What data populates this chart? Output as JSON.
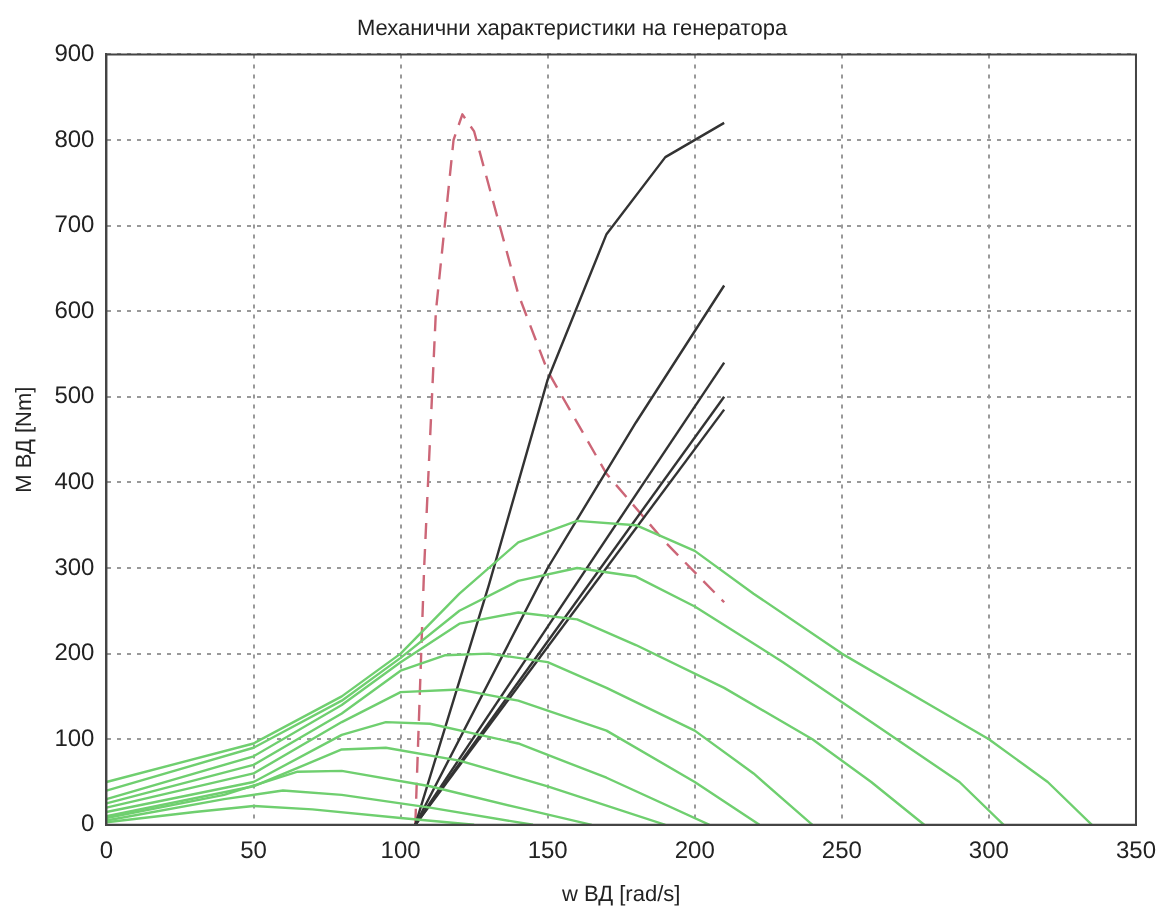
{
  "chart_data": {
    "type": "line",
    "title": "Механични характеристики на генератора",
    "xlabel": "w ВД [rad/s]",
    "ylabel": "M ВД [Nm]",
    "xlim": [
      0,
      350
    ],
    "ylim": [
      0,
      900
    ],
    "xticks": [
      0,
      50,
      100,
      150,
      200,
      250,
      300,
      350
    ],
    "yticks": [
      0,
      100,
      200,
      300,
      400,
      500,
      600,
      700,
      800,
      900
    ],
    "grid": true,
    "legend": false,
    "series": [
      {
        "color": "#6fcf6f",
        "x": [
          0,
          50,
          80,
          100,
          120,
          140,
          160,
          180,
          200,
          220,
          250,
          280,
          300,
          320,
          335
        ],
        "values": [
          50,
          95,
          150,
          200,
          270,
          330,
          355,
          350,
          320,
          270,
          200,
          140,
          100,
          50,
          0
        ]
      },
      {
        "color": "#6fcf6f",
        "x": [
          0,
          50,
          80,
          100,
          120,
          140,
          160,
          180,
          200,
          230,
          260,
          290,
          305
        ],
        "values": [
          40,
          90,
          145,
          195,
          250,
          285,
          300,
          290,
          255,
          190,
          120,
          50,
          0
        ]
      },
      {
        "color": "#6fcf6f",
        "x": [
          0,
          50,
          80,
          100,
          120,
          140,
          160,
          180,
          210,
          240,
          260,
          278
        ],
        "values": [
          30,
          80,
          140,
          190,
          235,
          248,
          240,
          210,
          160,
          100,
          50,
          0
        ]
      },
      {
        "color": "#6fcf6f",
        "x": [
          0,
          50,
          80,
          100,
          115,
          130,
          150,
          170,
          200,
          220,
          240
        ],
        "values": [
          25,
          70,
          130,
          180,
          198,
          200,
          190,
          160,
          110,
          60,
          0
        ]
      },
      {
        "color": "#6fcf6f",
        "x": [
          0,
          50,
          80,
          100,
          120,
          140,
          170,
          200,
          222
        ],
        "values": [
          20,
          60,
          120,
          155,
          158,
          145,
          110,
          50,
          0
        ]
      },
      {
        "color": "#6fcf6f",
        "x": [
          0,
          50,
          80,
          95,
          110,
          140,
          170,
          205
        ],
        "values": [
          15,
          50,
          105,
          120,
          118,
          95,
          55,
          0
        ]
      },
      {
        "color": "#6fcf6f",
        "x": [
          0,
          50,
          80,
          95,
          120,
          150,
          190
        ],
        "values": [
          10,
          45,
          88,
          90,
          75,
          45,
          0
        ]
      },
      {
        "color": "#6fcf6f",
        "x": [
          0,
          40,
          65,
          80,
          110,
          140,
          165
        ],
        "values": [
          8,
          35,
          62,
          63,
          45,
          20,
          0
        ]
      },
      {
        "color": "#6fcf6f",
        "x": [
          0,
          40,
          60,
          80,
          110,
          145
        ],
        "values": [
          5,
          30,
          40,
          35,
          20,
          0
        ]
      },
      {
        "color": "#6fcf6f",
        "x": [
          0,
          30,
          50,
          70,
          100,
          125
        ],
        "values": [
          3,
          15,
          22,
          18,
          8,
          0
        ]
      },
      {
        "color": "#333333",
        "x": [
          105,
          130,
          150,
          170,
          190,
          210
        ],
        "values": [
          0,
          280,
          520,
          690,
          780,
          820
        ]
      },
      {
        "color": "#333333",
        "x": [
          105,
          150,
          180,
          210
        ],
        "values": [
          0,
          300,
          470,
          630
        ]
      },
      {
        "color": "#333333",
        "x": [
          105,
          210
        ],
        "values": [
          0,
          540
        ]
      },
      {
        "color": "#333333",
        "x": [
          105,
          210
        ],
        "values": [
          0,
          500
        ]
      },
      {
        "color": "#333333",
        "x": [
          105,
          210
        ],
        "values": [
          0,
          485
        ]
      },
      {
        "color": "#cc6677",
        "line_style": "dashed",
        "x": [
          105,
          108,
          112,
          118,
          121,
          125,
          140,
          150,
          170,
          190,
          210
        ],
        "values": [
          0,
          300,
          600,
          800,
          830,
          810,
          620,
          530,
          410,
          330,
          260
        ]
      }
    ]
  }
}
